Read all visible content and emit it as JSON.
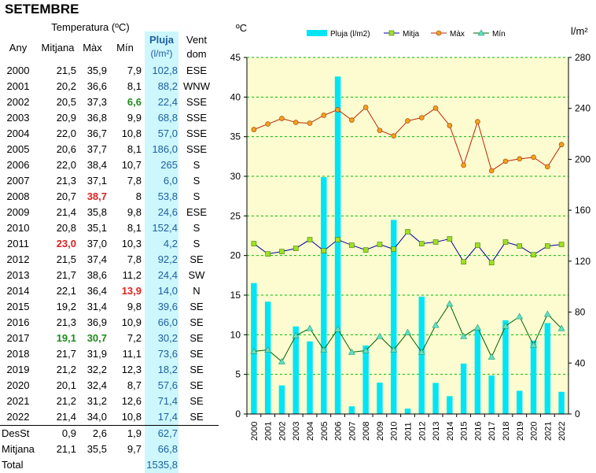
{
  "title": "SETEMBRE",
  "table": {
    "headers": {
      "group": "Temperatura (ºC)",
      "year": "Any",
      "mean": "Mitjana",
      "max": "Màx",
      "min": "Mín",
      "rain": "Pluja",
      "rain_unit": "(l/m²)",
      "wind": "Vent",
      "wind2": "dom"
    },
    "rows": [
      {
        "year": "2000",
        "mean": "21,5",
        "max": "35,9",
        "min": "7,9",
        "rain": "102,8",
        "wind": "ESE"
      },
      {
        "year": "2001",
        "mean": "20,2",
        "max": "36,6",
        "min": "8,1",
        "rain": "88,2",
        "wind": "WNW"
      },
      {
        "year": "2002",
        "mean": "20,5",
        "max": "37,3",
        "min": "6,6",
        "rain": "22,4",
        "wind": "SSE",
        "min_hl": "green"
      },
      {
        "year": "2003",
        "mean": "20,9",
        "max": "36,8",
        "min": "9,9",
        "rain": "68,8",
        "wind": "SSE"
      },
      {
        "year": "2004",
        "mean": "22,0",
        "max": "36,7",
        "min": "10,8",
        "rain": "57,0",
        "wind": "SSE"
      },
      {
        "year": "2005",
        "mean": "20,6",
        "max": "37,7",
        "min": "8,1",
        "rain": "186,0",
        "wind": "SSE"
      },
      {
        "year": "2006",
        "mean": "22,0",
        "max": "38,4",
        "min": "10,7",
        "rain": "265",
        "wind": "S"
      },
      {
        "year": "2007",
        "mean": "21,3",
        "max": "37,1",
        "min": "7,8",
        "rain": "6,0",
        "wind": "S"
      },
      {
        "year": "2008",
        "mean": "20,7",
        "max": "38,7",
        "min": "8",
        "rain": "53,8",
        "wind": "S",
        "max_hl": "red"
      },
      {
        "year": "2009",
        "mean": "21,4",
        "max": "35,8",
        "min": "9,8",
        "rain": "24,6",
        "wind": "ESE"
      },
      {
        "year": "2010",
        "mean": "20,8",
        "max": "35,1",
        "min": "8,1",
        "rain": "152,4",
        "wind": "S"
      },
      {
        "year": "2011",
        "mean": "23,0",
        "max": "37,0",
        "min": "10,3",
        "rain": "4,2",
        "wind": "S",
        "mean_hl": "red"
      },
      {
        "year": "2012",
        "mean": "21,5",
        "max": "37,4",
        "min": "7,8",
        "rain": "92,2",
        "wind": "SE"
      },
      {
        "year": "2013",
        "mean": "21,7",
        "max": "38,6",
        "min": "11,2",
        "rain": "24,4",
        "wind": "SW"
      },
      {
        "year": "2014",
        "mean": "22,1",
        "max": "36,4",
        "min": "13,9",
        "rain": "14,0",
        "wind": "N",
        "min_hl": "red"
      },
      {
        "year": "2015",
        "mean": "19,2",
        "max": "31,4",
        "min": "9,8",
        "rain": "39,6",
        "wind": "SE"
      },
      {
        "year": "2016",
        "mean": "21,3",
        "max": "36,9",
        "min": "10,9",
        "rain": "66,0",
        "wind": "SE"
      },
      {
        "year": "2017",
        "mean": "19,1",
        "max": "30,7",
        "min": "7,2",
        "rain": "30,2",
        "wind": "SE",
        "mean_hl": "green",
        "max_hl": "green"
      },
      {
        "year": "2018",
        "mean": "21,7",
        "max": "31,9",
        "min": "11,1",
        "rain": "73,6",
        "wind": "SE"
      },
      {
        "year": "2019",
        "mean": "21,2",
        "max": "32,2",
        "min": "12,3",
        "rain": "18,2",
        "wind": "SE"
      },
      {
        "year": "2020",
        "mean": "20,1",
        "max": "32,4",
        "min": "8,7",
        "rain": "57,6",
        "wind": "SE"
      },
      {
        "year": "2021",
        "mean": "21,2",
        "max": "31,2",
        "min": "12,6",
        "rain": "71,4",
        "wind": "SE"
      },
      {
        "year": "2022",
        "mean": "21,4",
        "max": "34,0",
        "min": "10,8",
        "rain": "17,4",
        "wind": "SE"
      }
    ],
    "summary": [
      {
        "label": "DesSt",
        "mean": "0,9",
        "max": "2,6",
        "min": "1,9",
        "rain": "62,7"
      },
      {
        "label": "Mitjana",
        "mean": "21,1",
        "max": "35,5",
        "min": "9,7",
        "rain": "66,8"
      },
      {
        "label": "Total",
        "mean": "",
        "max": "",
        "min": "",
        "rain": "1535,8"
      }
    ]
  },
  "colors": {
    "plot_bg": "#fcfcd0",
    "rain": "#00e5f5",
    "mean": "#0000a0",
    "mean_marker": "#a0e020",
    "max": "#c02000",
    "max_marker": "#f0a020",
    "min": "#006000",
    "min_marker": "#60e0c0",
    "grid": "#00bb00",
    "highlight_red": "#e02020",
    "highlight_green": "#1e8a1e"
  },
  "chart_data": {
    "type": "bar+line",
    "x": [
      "2000",
      "2001",
      "2002",
      "2003",
      "2004",
      "2005",
      "2006",
      "2007",
      "2008",
      "2009",
      "2010",
      "2011",
      "2012",
      "2013",
      "2014",
      "2015",
      "2016",
      "2017",
      "2018",
      "2019",
      "2020",
      "2021",
      "2022"
    ],
    "y_left_label": "ºC",
    "y_right_label": "l/m²",
    "y_left_lim": [
      0,
      45
    ],
    "y_left_ticks": [
      0,
      5,
      10,
      15,
      20,
      25,
      30,
      35,
      40,
      45
    ],
    "y_right_lim": [
      0,
      280
    ],
    "y_right_ticks": [
      0,
      40,
      80,
      120,
      160,
      200,
      240,
      280
    ],
    "grid": true,
    "legend_position": "top",
    "series": [
      {
        "name": "Pluja (l/m2)",
        "type": "bar",
        "axis": "right",
        "values": [
          102.8,
          88.2,
          22.4,
          68.8,
          57.0,
          186.0,
          265,
          6.0,
          53.8,
          24.6,
          152.4,
          4.2,
          92.2,
          24.4,
          14.0,
          39.6,
          66.0,
          30.2,
          73.6,
          18.2,
          57.6,
          71.4,
          17.4
        ]
      },
      {
        "name": "Mitja",
        "type": "line",
        "axis": "left",
        "values": [
          21.5,
          20.2,
          20.5,
          20.9,
          22.0,
          20.6,
          22.0,
          21.3,
          20.7,
          21.4,
          20.8,
          23.0,
          21.5,
          21.7,
          22.1,
          19.2,
          21.3,
          19.1,
          21.7,
          21.2,
          20.1,
          21.2,
          21.4
        ]
      },
      {
        "name": "Màx",
        "type": "line",
        "axis": "left",
        "values": [
          35.9,
          36.6,
          37.3,
          36.8,
          36.7,
          37.7,
          38.4,
          37.1,
          38.7,
          35.8,
          35.1,
          37.0,
          37.4,
          38.6,
          36.4,
          31.4,
          36.9,
          30.7,
          31.9,
          32.2,
          32.4,
          31.2,
          34.0
        ]
      },
      {
        "name": "Mín",
        "type": "line",
        "axis": "left",
        "values": [
          7.9,
          8.1,
          6.6,
          9.9,
          10.8,
          8.1,
          10.7,
          7.8,
          8.0,
          9.8,
          8.1,
          10.3,
          7.8,
          11.2,
          13.9,
          9.8,
          10.9,
          7.2,
          11.1,
          12.3,
          8.7,
          12.6,
          10.8
        ]
      }
    ]
  }
}
